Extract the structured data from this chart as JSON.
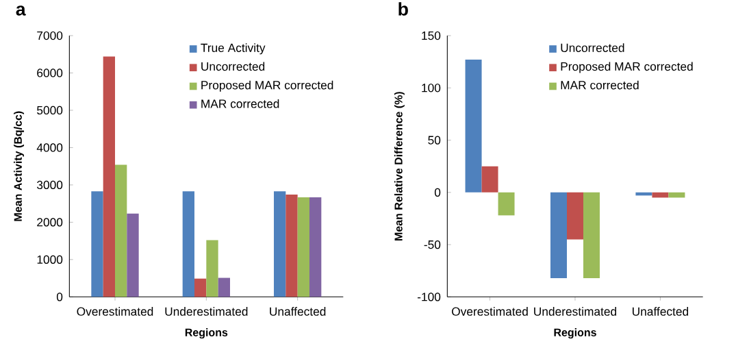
{
  "chart_data": [
    {
      "type": "bar",
      "title": "a",
      "xlabel": "Regions",
      "ylabel": "Mean Activity (Bq/cc)",
      "categories": [
        "Overestimated",
        "Underestimated",
        "Unaffected"
      ],
      "series": [
        {
          "name": "True Activity",
          "color": "#4f81bd",
          "values": [
            2830,
            2830,
            2830
          ]
        },
        {
          "name": "Uncorrected",
          "color": "#c0504d",
          "values": [
            6440,
            490,
            2740
          ]
        },
        {
          "name": "Proposed MAR corrected",
          "color": "#9bbb59",
          "values": [
            3540,
            1520,
            2670
          ]
        },
        {
          "name": "MAR corrected",
          "color": "#8064a2",
          "values": [
            2230,
            510,
            2670
          ]
        }
      ],
      "ylim": [
        0,
        7000
      ],
      "yticks": [
        0,
        1000,
        2000,
        3000,
        4000,
        5000,
        6000,
        7000
      ],
      "legend": "top right"
    },
    {
      "type": "bar",
      "title": "b",
      "xlabel": "Regions",
      "ylabel": "Mean Relative Difference (%)",
      "categories": [
        "Overestimated",
        "Underestimated",
        "Unaffected"
      ],
      "series": [
        {
          "name": "Uncorrected",
          "color": "#4f81bd",
          "values": [
            127,
            -82,
            -3
          ]
        },
        {
          "name": "Proposed MAR corrected",
          "color": "#c0504d",
          "values": [
            25,
            -45,
            -5
          ]
        },
        {
          "name": "MAR corrected",
          "color": "#9bbb59",
          "values": [
            -22,
            -82,
            -5
          ]
        }
      ],
      "ylim": [
        -100,
        150
      ],
      "yticks": [
        -100,
        -50,
        0,
        50,
        100,
        150
      ],
      "legend": "top right"
    }
  ]
}
